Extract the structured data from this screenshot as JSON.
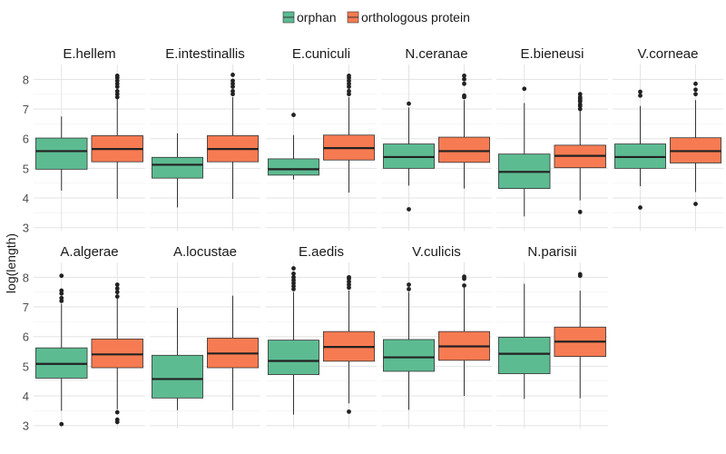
{
  "chart_data": {
    "type": "boxplot",
    "ylabel": "log(length)",
    "ylim": [
      2.9,
      8.5
    ],
    "yticks": [
      3,
      4,
      5,
      6,
      7,
      8
    ],
    "grid": true,
    "legend_position": "top",
    "legend": [
      {
        "name": "orphan",
        "color": "#5dbb92"
      },
      {
        "name": "orthologous protein",
        "color": "#f77b52"
      }
    ],
    "panels": [
      {
        "name": "E.hellem",
        "orphan": {
          "whislo": 4.25,
          "q1": 4.97,
          "med": 5.58,
          "q3": 6.02,
          "whishi": 6.75,
          "outliers": []
        },
        "orthologous": {
          "whislo": 3.97,
          "q1": 5.22,
          "med": 5.65,
          "q3": 6.1,
          "whishi": 7.35,
          "outliers": [
            7.4,
            7.5,
            7.6,
            7.75,
            7.85,
            7.95,
            8.05,
            8.12
          ]
        }
      },
      {
        "name": "E.intestinallis",
        "orphan": {
          "whislo": 3.68,
          "q1": 4.67,
          "med": 5.12,
          "q3": 5.37,
          "whishi": 6.18,
          "outliers": []
        },
        "orthologous": {
          "whislo": 3.97,
          "q1": 5.22,
          "med": 5.65,
          "q3": 6.1,
          "whishi": 7.4,
          "outliers": [
            7.5,
            7.6,
            7.75,
            7.85,
            7.95,
            8.15
          ]
        }
      },
      {
        "name": "E.cuniculi",
        "orphan": {
          "whislo": 4.62,
          "q1": 4.77,
          "med": 4.97,
          "q3": 5.32,
          "whishi": 6.12,
          "outliers": [
            6.8
          ]
        },
        "orthologous": {
          "whislo": 4.18,
          "q1": 5.28,
          "med": 5.68,
          "q3": 6.12,
          "whishi": 7.4,
          "outliers": [
            7.5,
            7.6,
            7.75,
            7.85,
            7.95,
            8.05,
            8.12
          ]
        }
      },
      {
        "name": "N.ceranae",
        "orphan": {
          "whislo": 4.42,
          "q1": 5.0,
          "med": 5.38,
          "q3": 5.82,
          "whishi": 7.05,
          "outliers": [
            3.62,
            7.18
          ]
        },
        "orthologous": {
          "whislo": 4.32,
          "q1": 5.2,
          "med": 5.58,
          "q3": 6.05,
          "whishi": 7.3,
          "outliers": [
            7.4,
            7.45,
            7.85,
            8.0,
            8.12
          ]
        }
      },
      {
        "name": "E.bieneusi",
        "orphan": {
          "whislo": 3.38,
          "q1": 4.32,
          "med": 4.88,
          "q3": 5.48,
          "whishi": 7.2,
          "outliers": [
            7.68
          ]
        },
        "orthologous": {
          "whislo": 3.92,
          "q1": 5.02,
          "med": 5.42,
          "q3": 5.78,
          "whishi": 6.95,
          "outliers": [
            3.53,
            7.0,
            7.1,
            7.15,
            7.25,
            7.3,
            7.35,
            7.4,
            7.5
          ]
        }
      },
      {
        "name": "V.corneae",
        "orphan": {
          "whislo": 4.4,
          "q1": 5.0,
          "med": 5.38,
          "q3": 5.82,
          "whishi": 7.1,
          "outliers": [
            3.68,
            7.45,
            7.58
          ]
        },
        "orthologous": {
          "whislo": 4.2,
          "q1": 5.18,
          "med": 5.58,
          "q3": 6.03,
          "whishi": 7.3,
          "outliers": [
            3.8,
            7.5,
            7.65,
            7.85
          ]
        }
      },
      {
        "name": "A.algerae",
        "orphan": {
          "whislo": 3.5,
          "q1": 4.6,
          "med": 5.08,
          "q3": 5.62,
          "whishi": 7.1,
          "outliers": [
            3.05,
            7.2,
            7.3,
            7.45,
            7.55,
            8.05
          ]
        },
        "orthologous": {
          "whislo": 3.55,
          "q1": 4.95,
          "med": 5.4,
          "q3": 5.92,
          "whishi": 7.28,
          "outliers": [
            3.12,
            3.2,
            3.45,
            7.35,
            7.5,
            7.62,
            7.75
          ]
        }
      },
      {
        "name": "A.locustae",
        "orphan": {
          "whislo": 3.52,
          "q1": 3.93,
          "med": 4.57,
          "q3": 5.37,
          "whishi": 6.97,
          "outliers": []
        },
        "orthologous": {
          "whislo": 3.52,
          "q1": 4.95,
          "med": 5.43,
          "q3": 5.95,
          "whishi": 7.38,
          "outliers": []
        }
      },
      {
        "name": "E.aedis",
        "orphan": {
          "whislo": 3.37,
          "q1": 4.72,
          "med": 5.18,
          "q3": 5.88,
          "whishi": 7.5,
          "outliers": [
            7.6,
            7.7,
            7.8,
            7.9,
            8.0,
            8.12,
            8.3
          ]
        },
        "orthologous": {
          "whislo": 3.75,
          "q1": 5.17,
          "med": 5.65,
          "q3": 6.17,
          "whishi": 7.55,
          "outliers": [
            3.47,
            7.65,
            7.75,
            7.85,
            7.95,
            8.0
          ]
        }
      },
      {
        "name": "V.culicis",
        "orphan": {
          "whislo": 3.53,
          "q1": 4.83,
          "med": 5.3,
          "q3": 5.9,
          "whishi": 7.5,
          "outliers": [
            7.6,
            7.75
          ]
        },
        "orthologous": {
          "whislo": 4.0,
          "q1": 5.2,
          "med": 5.67,
          "q3": 6.17,
          "whishi": 7.65,
          "outliers": [
            7.72,
            7.95,
            8.02
          ]
        }
      },
      {
        "name": "N.parisii",
        "orphan": {
          "whislo": 3.9,
          "q1": 4.75,
          "med": 5.42,
          "q3": 5.98,
          "whishi": 7.78,
          "outliers": []
        },
        "orthologous": {
          "whislo": 3.92,
          "q1": 5.33,
          "med": 5.83,
          "q3": 6.32,
          "whishi": 7.55,
          "outliers": [
            8.05,
            8.1
          ]
        }
      }
    ]
  }
}
